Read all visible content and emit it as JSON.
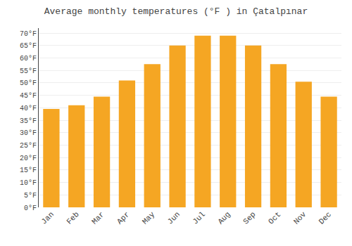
{
  "chart_data": {
    "type": "bar",
    "title": "Average monthly temperatures (°F ) in Çatalpınar",
    "categories": [
      "Jan",
      "Feb",
      "Mar",
      "Apr",
      "May",
      "Jun",
      "Jul",
      "Aug",
      "Sep",
      "Oct",
      "Nov",
      "Dec"
    ],
    "values": [
      39.5,
      41.0,
      44.5,
      51.0,
      57.5,
      65.0,
      69.0,
      69.0,
      65.0,
      57.5,
      50.5,
      44.5
    ],
    "color": "#F5A623",
    "ylim": [
      0,
      72
    ],
    "yticks": [
      {
        "value": 0,
        "label": "0°F"
      },
      {
        "value": 5,
        "label": "5°F"
      },
      {
        "value": 10,
        "label": "10°F"
      },
      {
        "value": 15,
        "label": "15°F"
      },
      {
        "value": 20,
        "label": "20°F"
      },
      {
        "value": 25,
        "label": "25°F"
      },
      {
        "value": 30,
        "label": "30°F"
      },
      {
        "value": 35,
        "label": "35°F"
      },
      {
        "value": 40,
        "label": "40°F"
      },
      {
        "value": 45,
        "label": "45°F"
      },
      {
        "value": 50,
        "label": "50°F"
      },
      {
        "value": 55,
        "label": "55°F"
      },
      {
        "value": 60,
        "label": "60°F"
      },
      {
        "value": 65,
        "label": "65°F"
      },
      {
        "value": 70,
        "label": "70°F"
      }
    ],
    "grid": true
  }
}
